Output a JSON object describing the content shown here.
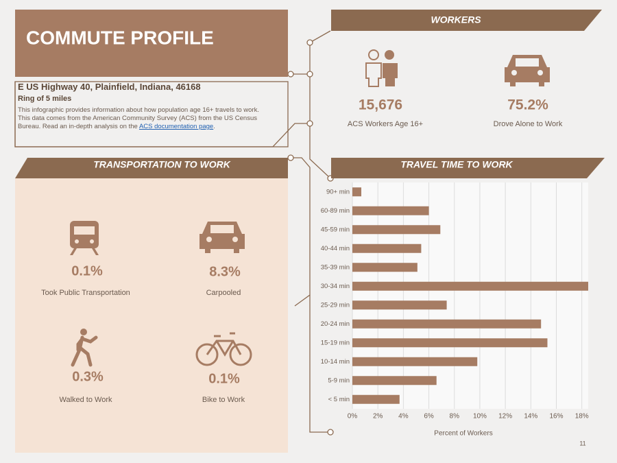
{
  "header": {
    "title": "COMMUTE PROFILE",
    "address": "E US Highway 40, Plainfield, Indiana, 46168",
    "ring": "Ring of 5 miles",
    "description": "This infographic provides information about how population age 16+ travels to work. This data comes from the American Community Survey (ACS) from the US Census Bureau. Read an in-depth analysis on the",
    "link": "ACS documentation page",
    "link_suffix": "."
  },
  "workers": {
    "title": "WORKERS",
    "items": [
      {
        "value": "15,676",
        "label": "ACS Workers Age 16+"
      },
      {
        "value": "75.2%",
        "label": "Drove Alone to Work"
      }
    ]
  },
  "transportation": {
    "title": "TRANSPORTATION TO WORK",
    "items": [
      {
        "value": "0.1%",
        "label": "Took Public Transportation"
      },
      {
        "value": "8.3%",
        "label": "Carpooled"
      },
      {
        "value": "0.3%",
        "label": "Walked to Work"
      },
      {
        "value": "0.1%",
        "label": "Bike to Work"
      }
    ]
  },
  "chart_data": {
    "type": "hbar",
    "title": "TRAVEL TIME TO WORK",
    "x_label": "Percent of Workers",
    "categories": [
      "90+ min",
      "60-89 min",
      "45-59 min",
      "40-44 min",
      "35-39 min",
      "30-34 min",
      "25-29 min",
      "20-24 min",
      "15-19 min",
      "10-14 min",
      "5-9 min",
      "< 5 min"
    ],
    "values": [
      0.7,
      6.0,
      6.9,
      5.4,
      5.1,
      18.5,
      7.4,
      14.8,
      15.3,
      9.8,
      6.6,
      3.7
    ],
    "color": "#a67c63",
    "xlim": [
      0,
      18.5
    ],
    "xticks": [
      {
        "value": 0,
        "label": "0%"
      },
      {
        "value": 2,
        "label": "2%"
      },
      {
        "value": 4,
        "label": "4%"
      },
      {
        "value": 6,
        "label": "6%"
      },
      {
        "value": 8,
        "label": "8%"
      },
      {
        "value": 10,
        "label": "10%"
      },
      {
        "value": 12,
        "label": "12%"
      },
      {
        "value": 14,
        "label": "14%"
      },
      {
        "value": 16,
        "label": "16%"
      },
      {
        "value": 18,
        "label": "18%"
      }
    ],
    "grid": true
  },
  "page_number": "11"
}
